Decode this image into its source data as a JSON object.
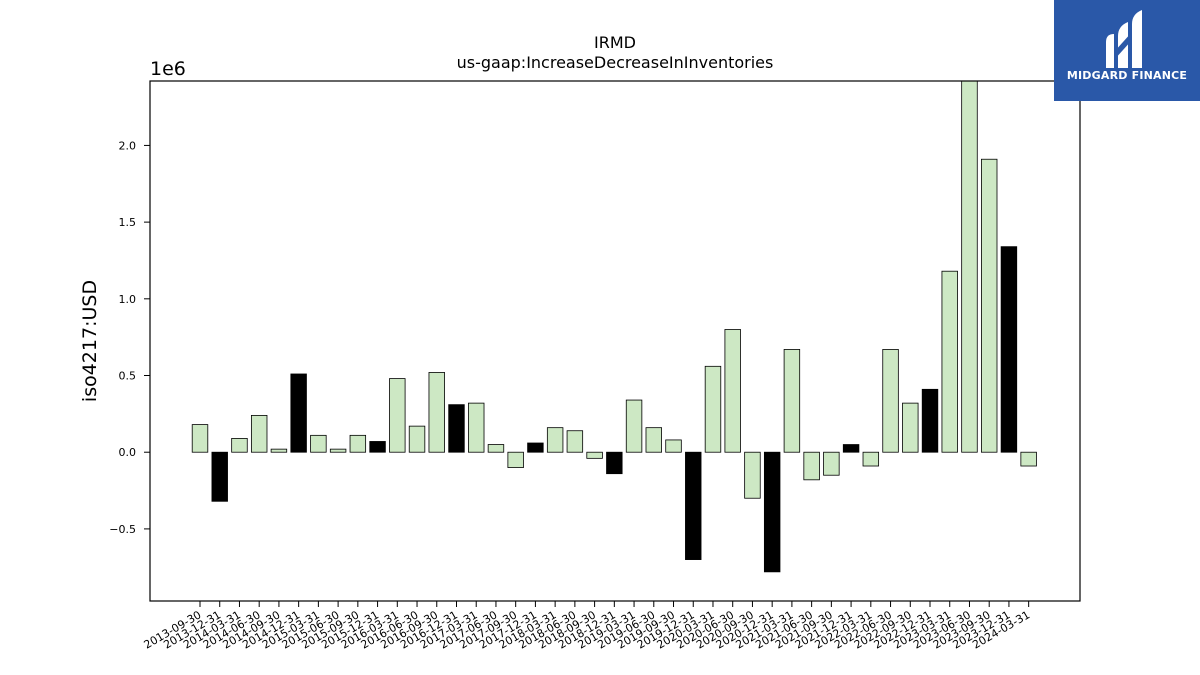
{
  "chart_data": {
    "type": "bar",
    "title": "IRMD",
    "subtitle": "us-gaap:IncreaseDecreaseInInventories",
    "ylabel": "iso4217:USD",
    "xlabel": "",
    "y_offset_label": "1e6",
    "ylim": [
      -0.97,
      2.42
    ],
    "yticks": [
      -0.5,
      0.0,
      0.5,
      1.0,
      1.5,
      2.0
    ],
    "ytick_labels": [
      "−0.5",
      "0.0",
      "0.5",
      "1.0",
      "1.5",
      "2.0"
    ],
    "grid": false,
    "colors": {
      "light": "#cde8c4",
      "dark": "#000000",
      "edge": "#000000"
    },
    "categories": [
      "2013-09-30",
      "2013-12-31",
      "2014-03-31",
      "2014-06-30",
      "2014-09-30",
      "2014-12-31",
      "2015-03-31",
      "2015-06-30",
      "2015-09-30",
      "2015-12-31",
      "2016-03-31",
      "2016-06-30",
      "2016-09-30",
      "2016-12-31",
      "2017-03-31",
      "2017-06-30",
      "2017-09-30",
      "2017-12-31",
      "2018-03-31",
      "2018-06-30",
      "2018-09-30",
      "2018-12-31",
      "2019-03-31",
      "2019-06-30",
      "2019-09-30",
      "2019-12-31",
      "2020-03-31",
      "2020-06-30",
      "2020-09-30",
      "2020-12-31",
      "2021-03-31",
      "2021-06-30",
      "2021-09-30",
      "2021-12-31",
      "2022-03-31",
      "2022-06-30",
      "2022-09-30",
      "2022-12-31",
      "2023-03-31",
      "2023-06-30",
      "2023-09-30",
      "2023-12-31",
      "2024-03-31"
    ],
    "values": [
      0.18,
      -0.32,
      0.09,
      0.24,
      0.02,
      0.51,
      0.11,
      0.02,
      0.11,
      0.07,
      0.48,
      0.17,
      0.52,
      0.31,
      0.32,
      0.05,
      -0.1,
      0.06,
      0.16,
      0.14,
      -0.04,
      -0.14,
      0.34,
      0.16,
      0.08,
      -0.7,
      0.56,
      0.8,
      -0.3,
      -0.78,
      0.67,
      -0.18,
      -0.15,
      0.05,
      -0.09,
      0.67,
      0.32,
      0.41,
      1.18,
      2.45,
      1.91,
      1.34,
      -0.09
    ],
    "highlight": [
      false,
      true,
      false,
      false,
      false,
      true,
      false,
      false,
      false,
      true,
      false,
      false,
      false,
      true,
      false,
      false,
      false,
      true,
      false,
      false,
      false,
      true,
      false,
      false,
      false,
      true,
      false,
      false,
      false,
      true,
      false,
      false,
      false,
      true,
      false,
      false,
      false,
      true,
      false,
      false,
      false,
      true,
      false
    ]
  },
  "logo": {
    "text": "MIDGARD FINANCE",
    "icon": "midgard-logo-icon"
  }
}
